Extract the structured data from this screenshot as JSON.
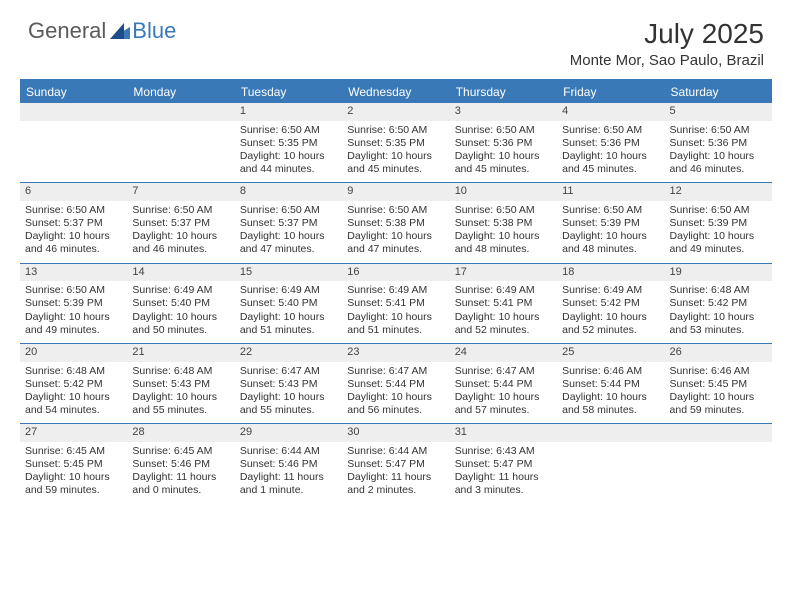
{
  "logo": {
    "text1": "General",
    "text2": "Blue"
  },
  "title": "July 2025",
  "location": "Monte Mor, Sao Paulo, Brazil",
  "colors": {
    "accent": "#3a79b7",
    "header_text": "#ffffff",
    "daynum_bg": "#eeeeee",
    "body_text": "#333333",
    "background": "#ffffff"
  },
  "day_headers": [
    "Sunday",
    "Monday",
    "Tuesday",
    "Wednesday",
    "Thursday",
    "Friday",
    "Saturday"
  ],
  "weeks": [
    [
      {
        "day": "",
        "sunrise": "",
        "sunset": "",
        "daylight": ""
      },
      {
        "day": "",
        "sunrise": "",
        "sunset": "",
        "daylight": ""
      },
      {
        "day": "1",
        "sunrise": "Sunrise: 6:50 AM",
        "sunset": "Sunset: 5:35 PM",
        "daylight": "Daylight: 10 hours and 44 minutes."
      },
      {
        "day": "2",
        "sunrise": "Sunrise: 6:50 AM",
        "sunset": "Sunset: 5:35 PM",
        "daylight": "Daylight: 10 hours and 45 minutes."
      },
      {
        "day": "3",
        "sunrise": "Sunrise: 6:50 AM",
        "sunset": "Sunset: 5:36 PM",
        "daylight": "Daylight: 10 hours and 45 minutes."
      },
      {
        "day": "4",
        "sunrise": "Sunrise: 6:50 AM",
        "sunset": "Sunset: 5:36 PM",
        "daylight": "Daylight: 10 hours and 45 minutes."
      },
      {
        "day": "5",
        "sunrise": "Sunrise: 6:50 AM",
        "sunset": "Sunset: 5:36 PM",
        "daylight": "Daylight: 10 hours and 46 minutes."
      }
    ],
    [
      {
        "day": "6",
        "sunrise": "Sunrise: 6:50 AM",
        "sunset": "Sunset: 5:37 PM",
        "daylight": "Daylight: 10 hours and 46 minutes."
      },
      {
        "day": "7",
        "sunrise": "Sunrise: 6:50 AM",
        "sunset": "Sunset: 5:37 PM",
        "daylight": "Daylight: 10 hours and 46 minutes."
      },
      {
        "day": "8",
        "sunrise": "Sunrise: 6:50 AM",
        "sunset": "Sunset: 5:37 PM",
        "daylight": "Daylight: 10 hours and 47 minutes."
      },
      {
        "day": "9",
        "sunrise": "Sunrise: 6:50 AM",
        "sunset": "Sunset: 5:38 PM",
        "daylight": "Daylight: 10 hours and 47 minutes."
      },
      {
        "day": "10",
        "sunrise": "Sunrise: 6:50 AM",
        "sunset": "Sunset: 5:38 PM",
        "daylight": "Daylight: 10 hours and 48 minutes."
      },
      {
        "day": "11",
        "sunrise": "Sunrise: 6:50 AM",
        "sunset": "Sunset: 5:39 PM",
        "daylight": "Daylight: 10 hours and 48 minutes."
      },
      {
        "day": "12",
        "sunrise": "Sunrise: 6:50 AM",
        "sunset": "Sunset: 5:39 PM",
        "daylight": "Daylight: 10 hours and 49 minutes."
      }
    ],
    [
      {
        "day": "13",
        "sunrise": "Sunrise: 6:50 AM",
        "sunset": "Sunset: 5:39 PM",
        "daylight": "Daylight: 10 hours and 49 minutes."
      },
      {
        "day": "14",
        "sunrise": "Sunrise: 6:49 AM",
        "sunset": "Sunset: 5:40 PM",
        "daylight": "Daylight: 10 hours and 50 minutes."
      },
      {
        "day": "15",
        "sunrise": "Sunrise: 6:49 AM",
        "sunset": "Sunset: 5:40 PM",
        "daylight": "Daylight: 10 hours and 51 minutes."
      },
      {
        "day": "16",
        "sunrise": "Sunrise: 6:49 AM",
        "sunset": "Sunset: 5:41 PM",
        "daylight": "Daylight: 10 hours and 51 minutes."
      },
      {
        "day": "17",
        "sunrise": "Sunrise: 6:49 AM",
        "sunset": "Sunset: 5:41 PM",
        "daylight": "Daylight: 10 hours and 52 minutes."
      },
      {
        "day": "18",
        "sunrise": "Sunrise: 6:49 AM",
        "sunset": "Sunset: 5:42 PM",
        "daylight": "Daylight: 10 hours and 52 minutes."
      },
      {
        "day": "19",
        "sunrise": "Sunrise: 6:48 AM",
        "sunset": "Sunset: 5:42 PM",
        "daylight": "Daylight: 10 hours and 53 minutes."
      }
    ],
    [
      {
        "day": "20",
        "sunrise": "Sunrise: 6:48 AM",
        "sunset": "Sunset: 5:42 PM",
        "daylight": "Daylight: 10 hours and 54 minutes."
      },
      {
        "day": "21",
        "sunrise": "Sunrise: 6:48 AM",
        "sunset": "Sunset: 5:43 PM",
        "daylight": "Daylight: 10 hours and 55 minutes."
      },
      {
        "day": "22",
        "sunrise": "Sunrise: 6:47 AM",
        "sunset": "Sunset: 5:43 PM",
        "daylight": "Daylight: 10 hours and 55 minutes."
      },
      {
        "day": "23",
        "sunrise": "Sunrise: 6:47 AM",
        "sunset": "Sunset: 5:44 PM",
        "daylight": "Daylight: 10 hours and 56 minutes."
      },
      {
        "day": "24",
        "sunrise": "Sunrise: 6:47 AM",
        "sunset": "Sunset: 5:44 PM",
        "daylight": "Daylight: 10 hours and 57 minutes."
      },
      {
        "day": "25",
        "sunrise": "Sunrise: 6:46 AM",
        "sunset": "Sunset: 5:44 PM",
        "daylight": "Daylight: 10 hours and 58 minutes."
      },
      {
        "day": "26",
        "sunrise": "Sunrise: 6:46 AM",
        "sunset": "Sunset: 5:45 PM",
        "daylight": "Daylight: 10 hours and 59 minutes."
      }
    ],
    [
      {
        "day": "27",
        "sunrise": "Sunrise: 6:45 AM",
        "sunset": "Sunset: 5:45 PM",
        "daylight": "Daylight: 10 hours and 59 minutes."
      },
      {
        "day": "28",
        "sunrise": "Sunrise: 6:45 AM",
        "sunset": "Sunset: 5:46 PM",
        "daylight": "Daylight: 11 hours and 0 minutes."
      },
      {
        "day": "29",
        "sunrise": "Sunrise: 6:44 AM",
        "sunset": "Sunset: 5:46 PM",
        "daylight": "Daylight: 11 hours and 1 minute."
      },
      {
        "day": "30",
        "sunrise": "Sunrise: 6:44 AM",
        "sunset": "Sunset: 5:47 PM",
        "daylight": "Daylight: 11 hours and 2 minutes."
      },
      {
        "day": "31",
        "sunrise": "Sunrise: 6:43 AM",
        "sunset": "Sunset: 5:47 PM",
        "daylight": "Daylight: 11 hours and 3 minutes."
      },
      {
        "day": "",
        "sunrise": "",
        "sunset": "",
        "daylight": ""
      },
      {
        "day": "",
        "sunrise": "",
        "sunset": "",
        "daylight": ""
      }
    ]
  ]
}
